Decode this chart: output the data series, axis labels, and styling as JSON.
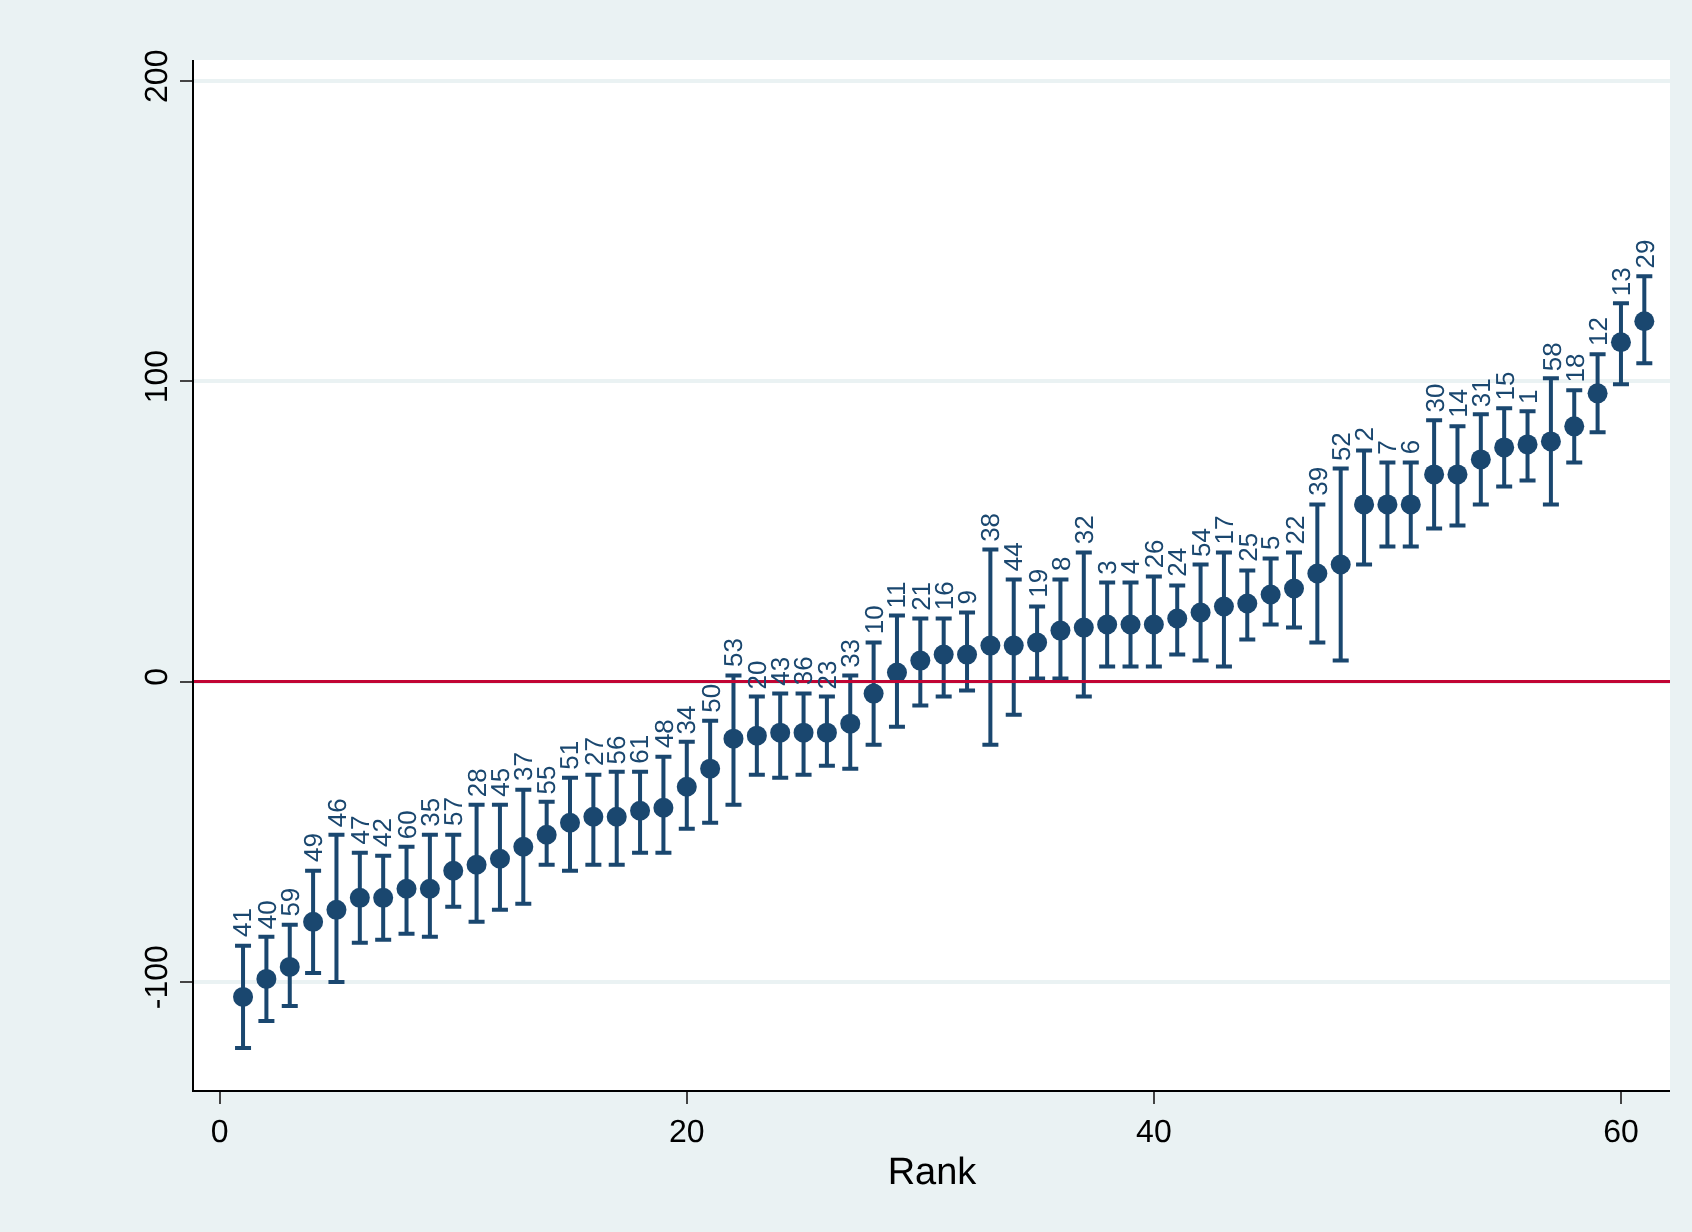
{
  "chart_data": {
    "type": "scatter",
    "xlabel": "Rank",
    "x": [
      1,
      2,
      3,
      4,
      5,
      6,
      7,
      8,
      9,
      10,
      11,
      12,
      13,
      14,
      15,
      16,
      17,
      18,
      19,
      20,
      21,
      22,
      23,
      24,
      25,
      26,
      27,
      28,
      29,
      30,
      31,
      32,
      33,
      34,
      35,
      36,
      37,
      38,
      39,
      40,
      41,
      42,
      43,
      44,
      45,
      46,
      47,
      48,
      49,
      50,
      51,
      52,
      53,
      54,
      55,
      56,
      57,
      58,
      59,
      60,
      61
    ],
    "series": [
      {
        "color": "#1a476f",
        "values": [
          -105,
          -99,
          -95,
          -80,
          -76,
          -72,
          -72,
          -69,
          -69,
          -63,
          -61,
          -59,
          -55,
          -51,
          -47,
          -45,
          -45,
          -43,
          -42,
          -35,
          -29,
          -19,
          -18,
          -17,
          -17,
          -17,
          -14,
          -4,
          3,
          7,
          9,
          9,
          12,
          12,
          13,
          17,
          18,
          19,
          19,
          19,
          21,
          23,
          25,
          26,
          29,
          31,
          36,
          39,
          59,
          59,
          59,
          69,
          69,
          74,
          78,
          79,
          80,
          85,
          96,
          113,
          120
        ],
        "errors": [
          [
            -122,
            -88
          ],
          [
            -113,
            -85
          ],
          [
            -108,
            -81
          ],
          [
            -97,
            -63
          ],
          [
            -100,
            -51
          ],
          [
            -87,
            -57
          ],
          [
            -86,
            -58
          ],
          [
            -84,
            -55
          ],
          [
            -85,
            -51
          ],
          [
            -75,
            -51
          ],
          [
            -80,
            -41
          ],
          [
            -76,
            -41
          ],
          [
            -74,
            -36
          ],
          [
            -61,
            -40
          ],
          [
            -63,
            -32
          ],
          [
            -61,
            -31
          ],
          [
            -61,
            -30
          ],
          [
            -57,
            -30
          ],
          [
            -57,
            -25
          ],
          [
            -49,
            -20
          ],
          [
            -47,
            -13
          ],
          [
            -41,
            2
          ],
          [
            -31,
            -5
          ],
          [
            -32,
            -4
          ],
          [
            -31,
            -4
          ],
          [
            -28,
            -5
          ],
          [
            -29,
            2
          ],
          [
            -21,
            13
          ],
          [
            -15,
            22
          ],
          [
            -8,
            21
          ],
          [
            -5,
            21
          ],
          [
            -3,
            23
          ],
          [
            -21,
            44
          ],
          [
            -11,
            34
          ],
          [
            1,
            25
          ],
          [
            1,
            34
          ],
          [
            -5,
            43
          ],
          [
            5,
            33
          ],
          [
            5,
            33
          ],
          [
            5,
            35
          ],
          [
            9,
            32
          ],
          [
            7,
            39
          ],
          [
            5,
            43
          ],
          [
            14,
            37
          ],
          [
            19,
            41
          ],
          [
            18,
            43
          ],
          [
            13,
            59
          ],
          [
            7,
            71
          ],
          [
            39,
            77
          ],
          [
            45,
            73
          ],
          [
            45,
            73
          ],
          [
            51,
            87
          ],
          [
            52,
            85
          ],
          [
            59,
            89
          ],
          [
            65,
            91
          ],
          [
            67,
            90
          ],
          [
            59,
            101
          ],
          [
            73,
            97
          ],
          [
            83,
            109
          ],
          [
            99,
            126
          ],
          [
            106,
            135
          ]
        ]
      }
    ],
    "annotations": [
      {
        "text": "41",
        "x": 1,
        "y": -88
      },
      {
        "text": "40",
        "x": 2,
        "y": -85
      },
      {
        "text": "59",
        "x": 3,
        "y": -81
      },
      {
        "text": "49",
        "x": 4,
        "y": -63
      },
      {
        "text": "46",
        "x": 5,
        "y": -51
      },
      {
        "text": "47",
        "x": 6,
        "y": -57
      },
      {
        "text": "42",
        "x": 7,
        "y": -58
      },
      {
        "text": "60",
        "x": 8,
        "y": -55
      },
      {
        "text": "35",
        "x": 9,
        "y": -51
      },
      {
        "text": "57",
        "x": 10,
        "y": -51
      },
      {
        "text": "28",
        "x": 11,
        "y": -41
      },
      {
        "text": "45",
        "x": 12,
        "y": -41
      },
      {
        "text": "37",
        "x": 13,
        "y": -36
      },
      {
        "text": "55",
        "x": 14,
        "y": -40
      },
      {
        "text": "51",
        "x": 15,
        "y": -32
      },
      {
        "text": "27",
        "x": 16,
        "y": -31
      },
      {
        "text": "56",
        "x": 17,
        "y": -30
      },
      {
        "text": "61",
        "x": 18,
        "y": -30
      },
      {
        "text": "48",
        "x": 19,
        "y": -25
      },
      {
        "text": "34",
        "x": 20,
        "y": -20
      },
      {
        "text": "50",
        "x": 21,
        "y": -13
      },
      {
        "text": "53",
        "x": 22,
        "y": 2
      },
      {
        "text": "20",
        "x": 23,
        "y": -5
      },
      {
        "text": "43",
        "x": 24,
        "y": -4
      },
      {
        "text": "36",
        "x": 25,
        "y": -4
      },
      {
        "text": "23",
        "x": 26,
        "y": -5
      },
      {
        "text": "33",
        "x": 27,
        "y": 2
      },
      {
        "text": "10",
        "x": 28,
        "y": 13
      },
      {
        "text": "11",
        "x": 29,
        "y": 22
      },
      {
        "text": "21",
        "x": 30,
        "y": 21
      },
      {
        "text": "16",
        "x": 31,
        "y": 21
      },
      {
        "text": "9",
        "x": 32,
        "y": 23
      },
      {
        "text": "38",
        "x": 33,
        "y": 44
      },
      {
        "text": "44",
        "x": 34,
        "y": 34
      },
      {
        "text": "19",
        "x": 35,
        "y": 25
      },
      {
        "text": "8",
        "x": 36,
        "y": 34
      },
      {
        "text": "32",
        "x": 37,
        "y": 43
      },
      {
        "text": "3",
        "x": 38,
        "y": 33
      },
      {
        "text": "4",
        "x": 39,
        "y": 33
      },
      {
        "text": "26",
        "x": 40,
        "y": 35
      },
      {
        "text": "24",
        "x": 41,
        "y": 32
      },
      {
        "text": "54",
        "x": 42,
        "y": 39
      },
      {
        "text": "17",
        "x": 43,
        "y": 43
      },
      {
        "text": "25",
        "x": 44,
        "y": 37
      },
      {
        "text": "5",
        "x": 45,
        "y": 41
      },
      {
        "text": "22",
        "x": 46,
        "y": 43
      },
      {
        "text": "39",
        "x": 47,
        "y": 59
      },
      {
        "text": "52",
        "x": 48,
        "y": 71
      },
      {
        "text": "2",
        "x": 49,
        "y": 77
      },
      {
        "text": "7",
        "x": 50,
        "y": 73
      },
      {
        "text": "6",
        "x": 51,
        "y": 73
      },
      {
        "text": "30",
        "x": 52,
        "y": 87
      },
      {
        "text": "14",
        "x": 53,
        "y": 85
      },
      {
        "text": "31",
        "x": 54,
        "y": 89
      },
      {
        "text": "15",
        "x": 55,
        "y": 91
      },
      {
        "text": "1",
        "x": 56,
        "y": 90
      },
      {
        "text": "58",
        "x": 57,
        "y": 101
      },
      {
        "text": "18",
        "x": 58,
        "y": 97
      },
      {
        "text": "12",
        "x": 59,
        "y": 109
      },
      {
        "text": "13",
        "x": 60,
        "y": 126
      },
      {
        "text": "29",
        "x": 61,
        "y": 135
      }
    ],
    "marker": "circle",
    "xlim": [
      -1.1,
      62.1
    ],
    "xticks": [
      0,
      20,
      40,
      60
    ],
    "ylim": [
      -136,
      207
    ],
    "yticks": [
      -100,
      0,
      100,
      200
    ],
    "grid": "y",
    "ref_lines": [
      {
        "axis": "y",
        "value": 0,
        "color": "#c10534"
      }
    ]
  }
}
